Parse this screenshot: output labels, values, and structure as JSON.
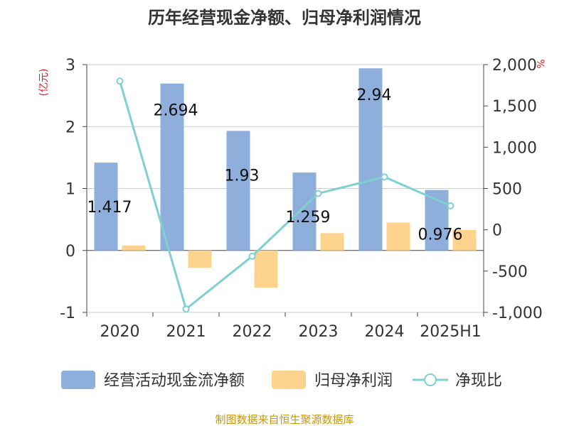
{
  "title": "历年经营现金净额、归母净利润情况",
  "source": "制图数据来自恒生聚源数据库",
  "chart_data": {
    "type": "bar",
    "categories": [
      "2020",
      "2021",
      "2022",
      "2023",
      "2024",
      "2025H1"
    ],
    "y_left": {
      "unit": "(亿元)",
      "ylim": [
        -1,
        3
      ],
      "ticks": [
        -1,
        0,
        1,
        2,
        3
      ]
    },
    "y_right": {
      "unit": "%",
      "ylim": [
        -1000,
        2000
      ],
      "ticks": [
        "2,000",
        "1,500",
        "1,000",
        "500",
        "0",
        "-500",
        "-1,000"
      ]
    },
    "series": [
      {
        "name": "经营活动现金流净额",
        "type": "bar",
        "axis": "left",
        "color": "#8eaedb",
        "values": [
          1.417,
          2.694,
          1.93,
          1.259,
          2.94,
          0.976
        ],
        "labels": [
          "1.417",
          "2.694",
          "1.93",
          "1.259",
          "2.94",
          "0.976"
        ]
      },
      {
        "name": "归母净利润",
        "type": "bar",
        "axis": "left",
        "color": "#fdd38e",
        "values": [
          0.08,
          -0.28,
          -0.6,
          0.28,
          0.45,
          0.33
        ]
      },
      {
        "name": "净现比",
        "type": "line",
        "axis": "right",
        "color": "#7fd0d0",
        "values": [
          1800,
          -960,
          -320,
          440,
          640,
          290
        ]
      }
    ],
    "grid": true,
    "legend": "bottom"
  }
}
